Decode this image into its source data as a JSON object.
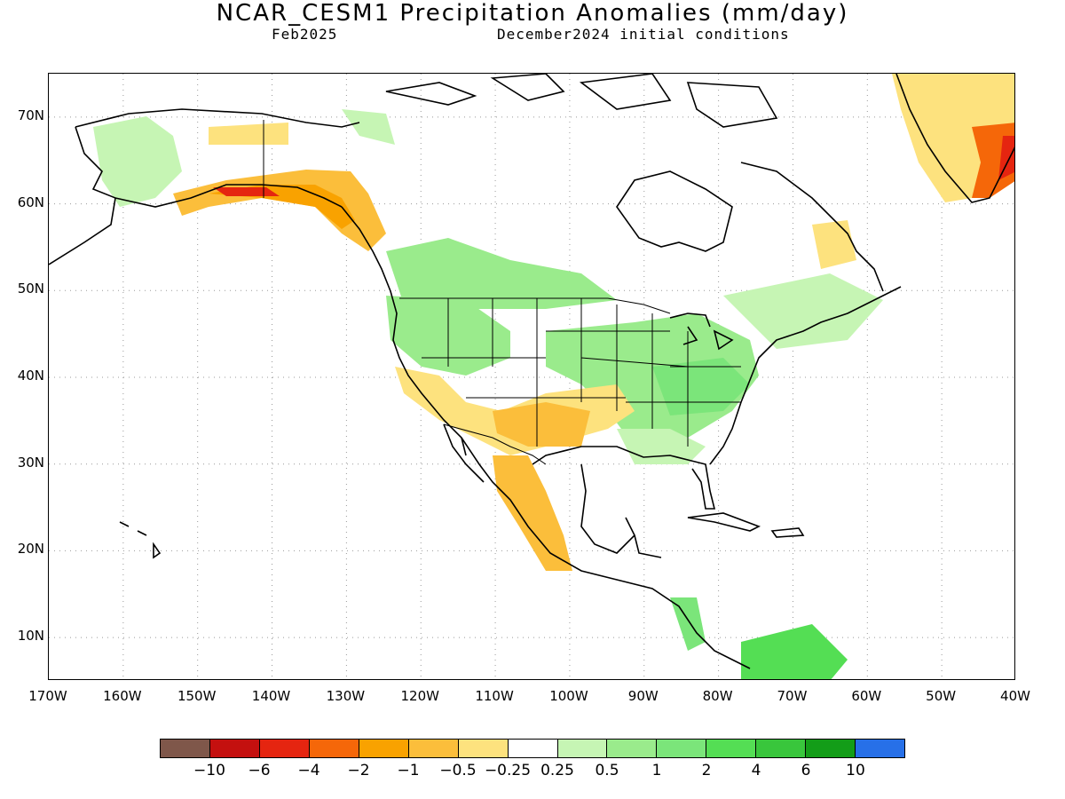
{
  "title": "NCAR_CESM1 Precipitation Anomalies (mm/day)",
  "subtitle_left": "Feb2025",
  "subtitle_right": "December2024 initial conditions",
  "map": {
    "lon_range": [
      -170,
      -40
    ],
    "lat_range": [
      5,
      75
    ],
    "lat_labels": [
      "70N",
      "60N",
      "50N",
      "40N",
      "30N",
      "20N",
      "10N"
    ],
    "lon_labels": [
      "170W",
      "160W",
      "150W",
      "140W",
      "130W",
      "120W",
      "110W",
      "100W",
      "90W",
      "80W",
      "70W",
      "60W",
      "50W",
      "40W"
    ]
  },
  "colorbar": {
    "colors": [
      "#7f574a",
      "#c4100f",
      "#e52510",
      "#f56709",
      "#f9a200",
      "#fbbe3b",
      "#fde27e",
      "#ffffff",
      "#c6f5b4",
      "#9aeb8c",
      "#7be57a",
      "#54de54",
      "#39c63c",
      "#139d18",
      "#2770e8"
    ],
    "labels": [
      "−10",
      "−6",
      "−4",
      "−2",
      "−1",
      "−0.5",
      "−0.25",
      "0.25",
      "0.5",
      "1",
      "2",
      "4",
      "6",
      "10"
    ]
  }
}
